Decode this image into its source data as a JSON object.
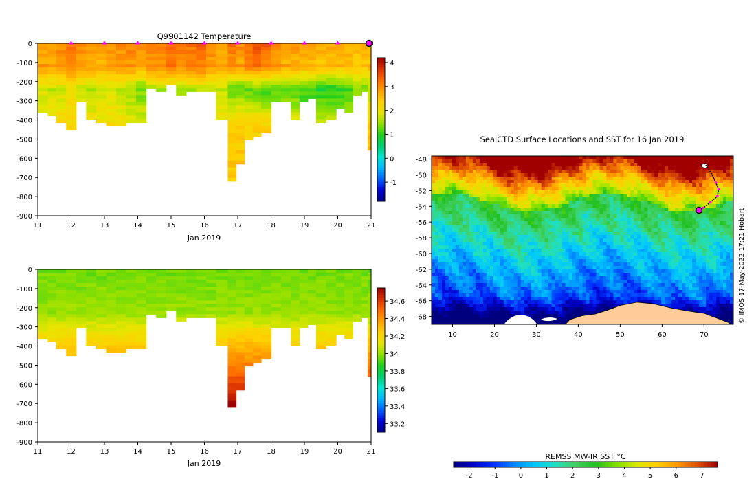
{
  "colors": {
    "temp_cmap": [
      "#00007f",
      "#0000d8",
      "#0060ff",
      "#00b8ff",
      "#00e6d0",
      "#00d070",
      "#20d020",
      "#90e000",
      "#e6e600",
      "#ffd000",
      "#ffa000",
      "#ff6a00",
      "#d83000",
      "#9a0000"
    ],
    "sst_cmap": [
      "#00007f",
      "#0000c8",
      "#0030ff",
      "#0088ff",
      "#00c8ff",
      "#20e0c0",
      "#40d060",
      "#20c020",
      "#80e000",
      "#d8e800",
      "#ffd000",
      "#ff9800",
      "#e05000",
      "#a00000"
    ],
    "land": "#ffcc99",
    "track": "#ff00ff",
    "marker": "#ff00ff"
  },
  "chart_data": [
    {
      "type": "heatmap",
      "id": "temperature-section",
      "title": "Q9901142  Temperature",
      "xlabel": "Jan 2019",
      "ylabel": "",
      "x_ticks": [
        "11",
        "12",
        "13",
        "14",
        "15",
        "16",
        "17",
        "18",
        "19",
        "20",
        "21"
      ],
      "y_ticks": [
        "0",
        "-100",
        "-200",
        "-300",
        "-400",
        "-500",
        "-600",
        "-700",
        "-800",
        "-900"
      ],
      "xlim": [
        11,
        21
      ],
      "ylim": [
        -900,
        0
      ],
      "colorbar": {
        "ticks": [
          "4",
          "3",
          "2",
          "1",
          "0",
          "-1"
        ],
        "range": [
          -1.8,
          4.2
        ]
      },
      "profile_marker_days": [
        12,
        13,
        14,
        15,
        16,
        17,
        18,
        19,
        20,
        21
      ],
      "profiles": [
        {
          "day": 11.0,
          "depth": 350,
          "surface": 2.9,
          "mid": 1.8,
          "deep": 2.2
        },
        {
          "day": 11.3,
          "depth": 370,
          "surface": 2.9,
          "mid": 1.7,
          "deep": 2.2
        },
        {
          "day": 11.55,
          "depth": 400,
          "surface": 3.0,
          "mid": 1.8,
          "deep": 2.2
        },
        {
          "day": 11.85,
          "depth": 450,
          "surface": 3.2,
          "mid": 2.0,
          "deep": 2.3
        },
        {
          "day": 12.15,
          "depth": 300,
          "surface": 3.0,
          "mid": 1.7,
          "deep": 2.1
        },
        {
          "day": 12.45,
          "depth": 380,
          "surface": 2.9,
          "mid": 1.6,
          "deep": 2.1
        },
        {
          "day": 12.75,
          "depth": 400,
          "surface": 2.8,
          "mid": 1.7,
          "deep": 2.1
        },
        {
          "day": 13.05,
          "depth": 430,
          "surface": 2.9,
          "mid": 1.8,
          "deep": 2.2
        },
        {
          "day": 13.35,
          "depth": 430,
          "surface": 3.0,
          "mid": 1.7,
          "deep": 2.1
        },
        {
          "day": 13.65,
          "depth": 400,
          "surface": 3.1,
          "mid": 1.5,
          "deep": 2.0
        },
        {
          "day": 13.95,
          "depth": 400,
          "surface": 2.9,
          "mid": 1.3,
          "deep": 2.0
        },
        {
          "day": 14.25,
          "depth": 230,
          "surface": 3.1,
          "mid": 1.6,
          "deep": 2.0
        },
        {
          "day": 14.55,
          "depth": 250,
          "surface": 3.2,
          "mid": 1.6,
          "deep": 2.0
        },
        {
          "day": 14.85,
          "depth": 210,
          "surface": 3.3,
          "mid": 1.6,
          "deep": 2.0
        },
        {
          "day": 15.15,
          "depth": 260,
          "surface": 3.2,
          "mid": 1.6,
          "deep": 1.9
        },
        {
          "day": 15.45,
          "depth": 250,
          "surface": 3.2,
          "mid": 1.6,
          "deep": 1.9
        },
        {
          "day": 15.75,
          "depth": 250,
          "surface": 3.3,
          "mid": 1.7,
          "deep": 1.9
        },
        {
          "day": 16.05,
          "depth": 250,
          "surface": 3.0,
          "mid": 1.6,
          "deep": 1.9
        },
        {
          "day": 16.35,
          "depth": 380,
          "surface": 2.8,
          "mid": 1.7,
          "deep": 2.0
        },
        {
          "day": 16.7,
          "depth": 710,
          "surface": 3.2,
          "mid": 1.2,
          "deep": 2.4
        },
        {
          "day": 16.95,
          "depth": 630,
          "surface": 3.0,
          "mid": 1.2,
          "deep": 2.4
        },
        {
          "day": 17.2,
          "depth": 500,
          "surface": 3.3,
          "mid": 1.2,
          "deep": 2.3
        },
        {
          "day": 17.45,
          "depth": 470,
          "surface": 3.5,
          "mid": 1.2,
          "deep": 2.3
        },
        {
          "day": 17.7,
          "depth": 460,
          "surface": 3.4,
          "mid": 1.1,
          "deep": 2.3
        },
        {
          "day": 18.0,
          "depth": 290,
          "surface": 3.0,
          "mid": 1.1,
          "deep": 2.0
        },
        {
          "day": 18.3,
          "depth": 290,
          "surface": 2.9,
          "mid": 1.1,
          "deep": 2.0
        },
        {
          "day": 18.6,
          "depth": 380,
          "surface": 2.9,
          "mid": 1.1,
          "deep": 2.0
        },
        {
          "day": 18.85,
          "depth": 300,
          "surface": 2.8,
          "mid": 1.0,
          "deep": 1.9
        },
        {
          "day": 19.1,
          "depth": 280,
          "surface": 2.8,
          "mid": 1.0,
          "deep": 1.9
        },
        {
          "day": 19.35,
          "depth": 400,
          "surface": 2.7,
          "mid": 0.9,
          "deep": 1.9
        },
        {
          "day": 19.65,
          "depth": 390,
          "surface": 2.7,
          "mid": 0.9,
          "deep": 1.9
        },
        {
          "day": 19.95,
          "depth": 330,
          "surface": 2.7,
          "mid": 1.0,
          "deep": 1.9
        },
        {
          "day": 20.2,
          "depth": 360,
          "surface": 2.7,
          "mid": 1.1,
          "deep": 1.9
        },
        {
          "day": 20.45,
          "depth": 270,
          "surface": 2.6,
          "mid": 1.3,
          "deep": 1.9
        },
        {
          "day": 20.7,
          "depth": 250,
          "surface": 2.6,
          "mid": 1.3,
          "deep": 1.9
        },
        {
          "day": 20.9,
          "depth": 550,
          "surface": 2.7,
          "mid": 1.5,
          "deep": 2.5
        }
      ]
    },
    {
      "type": "heatmap",
      "id": "salinity-section",
      "title": "",
      "xlabel": "Jan 2019",
      "ylabel": "",
      "x_ticks": [
        "11",
        "12",
        "13",
        "14",
        "15",
        "16",
        "17",
        "18",
        "19",
        "20",
        "21"
      ],
      "y_ticks": [
        "0",
        "-100",
        "-200",
        "-300",
        "-400",
        "-500",
        "-600",
        "-700",
        "-800",
        "-900"
      ],
      "xlim": [
        11,
        21
      ],
      "ylim": [
        -900,
        0
      ],
      "colorbar": {
        "ticks": [
          "34.6",
          "34.4",
          "34.2",
          "34",
          "33.8",
          "33.6",
          "33.4",
          "33.2"
        ],
        "range": [
          33.1,
          34.75
        ]
      }
    },
    {
      "type": "heatmap",
      "id": "sst-map",
      "title": "SealCTD Surface Locations and SST for 16 Jan 2019",
      "xlabel": "",
      "ylabel": "",
      "x_ticks": [
        "10",
        "20",
        "30",
        "40",
        "50",
        "60",
        "70"
      ],
      "y_ticks": [
        "-48",
        "-50",
        "-52",
        "-54",
        "-56",
        "-58",
        "-60",
        "-62",
        "-64",
        "-66",
        "-68"
      ],
      "xlim": [
        5,
        77
      ],
      "ylim": [
        -69,
        -47.6
      ],
      "colorbar": {
        "label": "REMSS MW-IR SST °C",
        "ticks": [
          "-2",
          "-1",
          "0",
          "1",
          "2",
          "3",
          "4",
          "5",
          "6",
          "7"
        ],
        "range": [
          -2.6,
          7.6
        ]
      },
      "track": [
        {
          "lon": 70.1,
          "lat": -48.5
        },
        {
          "lon": 71.0,
          "lat": -49.2
        },
        {
          "lon": 72.0,
          "lat": -50.0
        },
        {
          "lon": 72.8,
          "lat": -51.0
        },
        {
          "lon": 73.5,
          "lat": -51.8
        },
        {
          "lon": 73.2,
          "lat": -52.7
        },
        {
          "lon": 71.5,
          "lat": -53.5
        },
        {
          "lon": 69.8,
          "lat": -54.2
        },
        {
          "lon": 68.8,
          "lat": -54.5
        }
      ],
      "current_position": {
        "lon": 68.8,
        "lat": -54.5
      },
      "credit": "© IMOS 17-May-2022 17:21 Hobart"
    }
  ]
}
